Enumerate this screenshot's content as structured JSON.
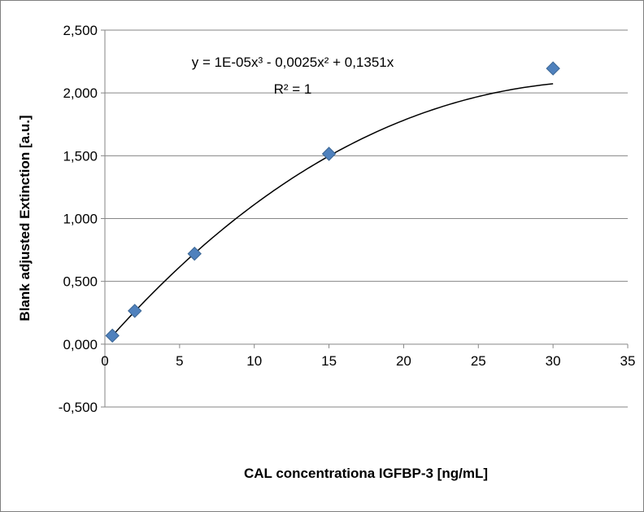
{
  "chart_data": {
    "type": "scatter",
    "title": "",
    "xlabel": "CAL concentrationa IGFBP-3 [ng/mL]",
    "ylabel": "Blank adjusted Extinction [a.u.]",
    "xlim": [
      0,
      35
    ],
    "ylim": [
      -0.5,
      2.5
    ],
    "x_ticks": [
      "0",
      "5",
      "10",
      "15",
      "20",
      "25",
      "30",
      "35"
    ],
    "y_ticks": [
      "-0,500",
      "0,000",
      "0,500",
      "1,000",
      "1,500",
      "2,000",
      "2,500"
    ],
    "x_tick_values": [
      0,
      5,
      10,
      15,
      20,
      25,
      30,
      35
    ],
    "y_tick_values": [
      -0.5,
      0,
      0.5,
      1.0,
      1.5,
      2.0,
      2.5
    ],
    "grid": "horizontal",
    "legend": "none",
    "series": [
      {
        "marker": "diamond",
        "color": "#4f81bd",
        "points": [
          {
            "x": 0.5,
            "y": 0.068
          },
          {
            "x": 2,
            "y": 0.265
          },
          {
            "x": 6,
            "y": 0.72
          },
          {
            "x": 15,
            "y": 1.515
          },
          {
            "x": 30,
            "y": 2.195
          }
        ]
      }
    ],
    "trendline": {
      "type": "polynomial",
      "order": 3,
      "color": "#000000",
      "coefficients": [
        1e-05,
        -0.0025,
        0.1351,
        0
      ],
      "x_range": [
        0.5,
        30
      ],
      "equation_text": "y = 1E-05x³ - 0,0025x² + 0,1351x",
      "r2_text": "R² = 1"
    }
  }
}
